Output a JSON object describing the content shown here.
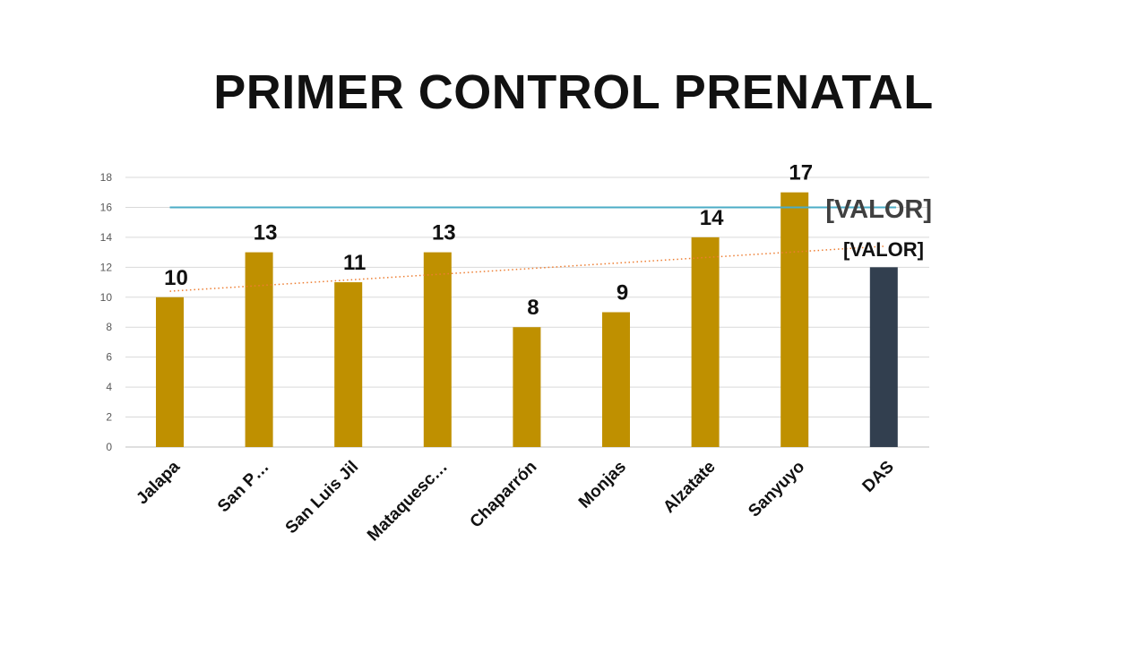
{
  "slide": {
    "title": "PRIMER CONTROL PRENATAL"
  },
  "chart_data": {
    "type": "bar",
    "title": "PRIMER CONTROL PRENATAL",
    "categories": [
      "Jalapa",
      "San P…",
      "San Luis Jil",
      "Mataquesc…",
      "Chaparrón",
      "Monjas",
      "Alzatate",
      "Sanyuyo",
      "DAS"
    ],
    "values": [
      10,
      13,
      11,
      13,
      8,
      9,
      14,
      17,
      12
    ],
    "data_labels": [
      "10",
      "13",
      "11",
      "13",
      "8",
      "9",
      "14",
      "17",
      "[VALOR]"
    ],
    "bar_colors": [
      "#BF9000",
      "#BF9000",
      "#BF9000",
      "#BF9000",
      "#BF9000",
      "#BF9000",
      "#BF9000",
      "#BF9000",
      "#323F4F"
    ],
    "ylim": [
      0,
      18
    ],
    "yticks": [
      0,
      2,
      4,
      6,
      8,
      10,
      12,
      14,
      16,
      18
    ],
    "grid": true,
    "reference_line": {
      "value": 16,
      "label": "[VALOR]",
      "color": "#4BACC6"
    },
    "trendline": {
      "type": "linear",
      "start": 10.4,
      "end": 13.4,
      "color": "#ED7D31",
      "style": "dotted"
    },
    "xlabel": "",
    "ylabel": ""
  }
}
